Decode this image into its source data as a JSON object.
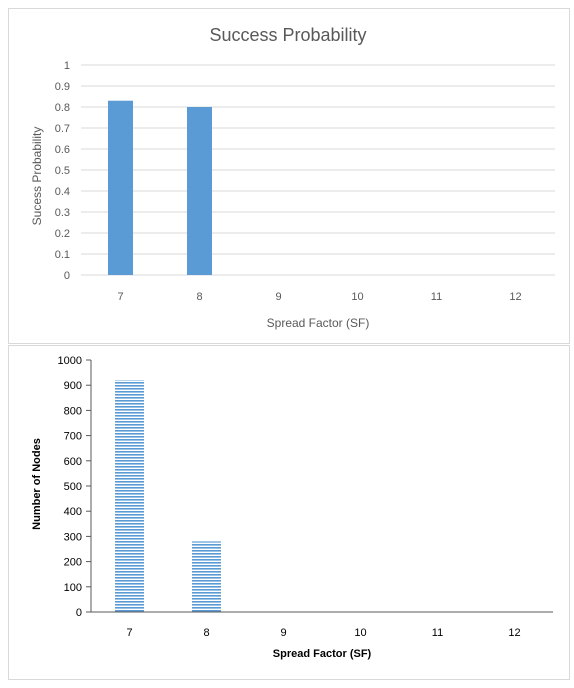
{
  "chart_data": [
    {
      "type": "bar",
      "title": "Success Probability",
      "xlabel": "Spread Factor (SF)",
      "ylabel": "Sucess Probability",
      "categories": [
        "7",
        "8",
        "9",
        "10",
        "11",
        "12"
      ],
      "values": [
        0.83,
        0.8,
        0,
        0,
        0,
        0
      ],
      "ylim": [
        0,
        1
      ],
      "yticks": [
        "0",
        "0.1",
        "0.2",
        "0.3",
        "0.4",
        "0.5",
        "0.6",
        "0.7",
        "0.8",
        "0.9",
        "1"
      ],
      "grid": true,
      "bar_color": "#5b9bd5"
    },
    {
      "type": "bar",
      "title": "",
      "xlabel": "Spread Factor (SF)",
      "ylabel": "Number of Nodes",
      "categories": [
        "7",
        "8",
        "9",
        "10",
        "11",
        "12"
      ],
      "values": [
        920,
        280,
        0,
        0,
        0,
        0
      ],
      "ylim": [
        0,
        1000
      ],
      "yticks": [
        "0",
        "100",
        "200",
        "300",
        "400",
        "500",
        "600",
        "700",
        "800",
        "900",
        "1000"
      ],
      "grid": false,
      "bar_color": "#5b9bd5",
      "bar_pattern": "horizontal-stripes"
    }
  ]
}
